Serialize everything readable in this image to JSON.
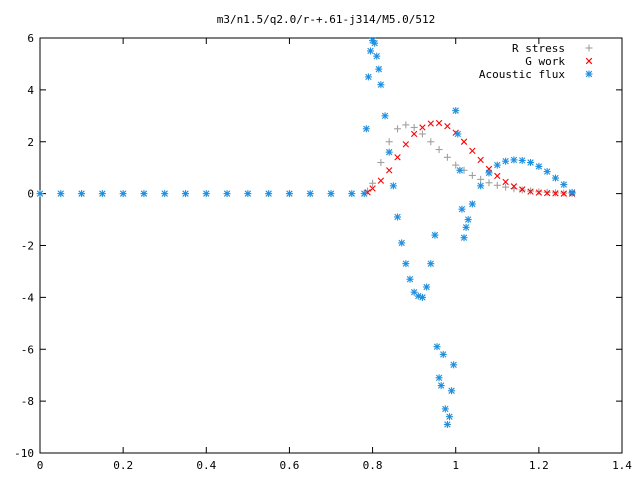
{
  "chart_data": {
    "type": "scatter",
    "title": "m3/n1.5/q2.0/r-+.61-j314/M5.0/512",
    "xlabel": "",
    "ylabel": "",
    "xlim": [
      0,
      1.4
    ],
    "ylim": [
      -10,
      6
    ],
    "x_ticks": [
      0,
      0.2,
      0.4,
      0.6,
      0.8,
      1,
      1.2,
      1.4
    ],
    "y_ticks": [
      -10,
      -8,
      -6,
      -4,
      -2,
      0,
      2,
      4,
      6
    ],
    "grid": false,
    "legend_position": "top-right",
    "series": [
      {
        "name": "R stress",
        "marker": "plus",
        "color": "#a0a0a0",
        "x": [
          0.788,
          0.8,
          0.82,
          0.84,
          0.86,
          0.88,
          0.9,
          0.92,
          0.94,
          0.96,
          0.98,
          1.0,
          1.02,
          1.04,
          1.06,
          1.08,
          1.1,
          1.12,
          1.14,
          1.16,
          1.18,
          1.2,
          1.22,
          1.24,
          1.26,
          1.28
        ],
        "y": [
          0.1,
          0.4,
          1.2,
          2.0,
          2.5,
          2.65,
          2.55,
          2.3,
          2.0,
          1.7,
          1.4,
          1.1,
          0.9,
          0.7,
          0.55,
          0.42,
          0.32,
          0.25,
          0.19,
          0.14,
          0.1,
          0.07,
          0.05,
          0.03,
          0.02,
          0.01
        ]
      },
      {
        "name": "G work",
        "marker": "cross",
        "color": "#ff0000",
        "x": [
          0.788,
          0.8,
          0.82,
          0.84,
          0.86,
          0.88,
          0.9,
          0.92,
          0.94,
          0.96,
          0.98,
          1.0,
          1.02,
          1.04,
          1.06,
          1.08,
          1.1,
          1.12,
          1.14,
          1.16,
          1.18,
          1.2,
          1.22,
          1.24,
          1.26,
          1.28
        ],
        "y": [
          0.05,
          0.2,
          0.5,
          0.9,
          1.4,
          1.9,
          2.3,
          2.55,
          2.7,
          2.72,
          2.6,
          2.35,
          2.0,
          1.65,
          1.3,
          0.95,
          0.68,
          0.45,
          0.28,
          0.16,
          0.08,
          0.04,
          0.02,
          0.01,
          0.0,
          0.0
        ]
      },
      {
        "name": "Acoustic flux",
        "marker": "star",
        "color": "#1f8fdf",
        "x": [
          0.0,
          0.05,
          0.1,
          0.15,
          0.2,
          0.25,
          0.3,
          0.35,
          0.4,
          0.45,
          0.5,
          0.55,
          0.6,
          0.65,
          0.7,
          0.75,
          0.78,
          0.785,
          0.79,
          0.795,
          0.8,
          0.805,
          0.81,
          0.815,
          0.82,
          0.83,
          0.84,
          0.85,
          0.86,
          0.87,
          0.88,
          0.89,
          0.9,
          0.91,
          0.92,
          0.93,
          0.94,
          0.95,
          0.955,
          0.96,
          0.965,
          0.97,
          0.975,
          0.98,
          0.985,
          0.99,
          0.995,
          1.0,
          1.005,
          1.01,
          1.015,
          1.02,
          1.025,
          1.03,
          1.04,
          1.06,
          1.08,
          1.1,
          1.12,
          1.14,
          1.16,
          1.18,
          1.2,
          1.22,
          1.24,
          1.26,
          1.28
        ],
        "y": [
          0,
          0,
          0,
          0,
          0,
          0,
          0,
          0,
          0,
          0,
          0,
          0,
          0,
          0,
          0,
          0,
          0,
          2.5,
          4.5,
          5.5,
          5.9,
          5.8,
          5.3,
          4.8,
          4.2,
          3.0,
          1.6,
          0.3,
          -0.9,
          -1.9,
          -2.7,
          -3.3,
          -3.8,
          -3.95,
          -4.0,
          -3.6,
          -2.7,
          -1.6,
          -5.9,
          -7.1,
          -7.4,
          -6.2,
          -8.3,
          -8.9,
          -8.6,
          -7.6,
          -6.6,
          3.2,
          2.3,
          0.9,
          -0.6,
          -1.7,
          -1.3,
          -1.0,
          -0.4,
          0.3,
          0.8,
          1.1,
          1.25,
          1.3,
          1.28,
          1.2,
          1.05,
          0.85,
          0.6,
          0.35,
          0.05
        ]
      }
    ]
  }
}
